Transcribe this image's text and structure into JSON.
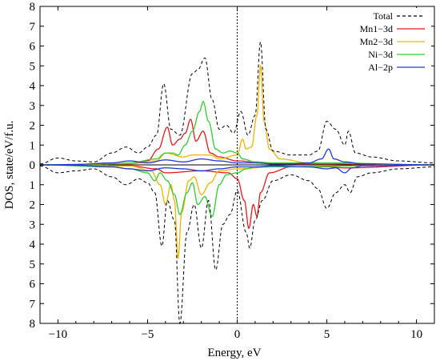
{
  "chart_data": {
    "type": "line",
    "title": "",
    "xlabel": "Energy, eV",
    "ylabel": "DOS, state/eV/f.u.",
    "xlim": [
      -11,
      11
    ],
    "ylim": [
      -8,
      8
    ],
    "xticks": [
      -10,
      -5,
      0,
      5,
      10
    ],
    "xtick_labels": [
      "−10",
      "−5",
      "0",
      "5",
      "10"
    ],
    "yticks": [
      -8,
      -7,
      -6,
      -5,
      -4,
      -3,
      -2,
      -1,
      0,
      1,
      2,
      3,
      4,
      5,
      6,
      7,
      8
    ],
    "ytick_labels": [
      "8",
      "7",
      "6",
      "5",
      "4",
      "3",
      "2",
      "1",
      "0",
      "1",
      "2",
      "3",
      "4",
      "5",
      "6",
      "7",
      "8"
    ],
    "fermi_level": 0,
    "legend_position": "top-right",
    "series": [
      {
        "name": "Total",
        "color": "#000000",
        "dashed": true,
        "up": [
          [
            -11,
            0.05
          ],
          [
            -10,
            0.35
          ],
          [
            -9,
            0.2
          ],
          [
            -8,
            0.15
          ],
          [
            -7,
            0.6
          ],
          [
            -6.2,
            0.9
          ],
          [
            -5.5,
            0.6
          ],
          [
            -5,
            0.9
          ],
          [
            -4.5,
            1.5
          ],
          [
            -4.1,
            4.1
          ],
          [
            -3.7,
            1.8
          ],
          [
            -3.2,
            1.5
          ],
          [
            -2.5,
            4.6
          ],
          [
            -2.2,
            4.8
          ],
          [
            -1.8,
            5.4
          ],
          [
            -1.4,
            3.3
          ],
          [
            -1,
            1.8
          ],
          [
            -0.6,
            2.0
          ],
          [
            -0.2,
            1.6
          ],
          [
            0.2,
            2.7
          ],
          [
            0.6,
            1.5
          ],
          [
            1.0,
            2.5
          ],
          [
            1.3,
            6.2
          ],
          [
            1.6,
            1.8
          ],
          [
            2,
            0.7
          ],
          [
            3,
            0.5
          ],
          [
            4,
            0.5
          ],
          [
            4.5,
            0.7
          ],
          [
            5,
            2.2
          ],
          [
            5.5,
            1.8
          ],
          [
            6,
            1.0
          ],
          [
            6.2,
            1.7
          ],
          [
            6.6,
            0.6
          ],
          [
            7.5,
            0.4
          ],
          [
            9,
            0.2
          ],
          [
            11,
            0.1
          ]
        ],
        "down": [
          [
            -11,
            0.05
          ],
          [
            -10,
            0.4
          ],
          [
            -9,
            0.3
          ],
          [
            -8,
            0.2
          ],
          [
            -7,
            0.6
          ],
          [
            -6.2,
            1.0
          ],
          [
            -5.5,
            0.7
          ],
          [
            -5,
            0.9
          ],
          [
            -4.6,
            1.4
          ],
          [
            -4.2,
            4.1
          ],
          [
            -3.9,
            1.8
          ],
          [
            -3.5,
            2.8
          ],
          [
            -3.2,
            8.0
          ],
          [
            -2.8,
            3.4
          ],
          [
            -2.4,
            2.0
          ],
          [
            -2.0,
            4.2
          ],
          [
            -1.6,
            1.8
          ],
          [
            -1.2,
            5.3
          ],
          [
            -0.8,
            3.0
          ],
          [
            -0.4,
            2.5
          ],
          [
            0,
            1.3
          ],
          [
            0.5,
            3.4
          ],
          [
            0.7,
            4.2
          ],
          [
            1.0,
            2.8
          ],
          [
            1.4,
            1.8
          ],
          [
            2,
            0.8
          ],
          [
            3,
            0.5
          ],
          [
            4,
            0.8
          ],
          [
            4.5,
            1.2
          ],
          [
            5,
            2.2
          ],
          [
            5.5,
            1.4
          ],
          [
            6,
            1.0
          ],
          [
            6.3,
            1.4
          ],
          [
            6.7,
            0.6
          ],
          [
            7.5,
            0.4
          ],
          [
            9,
            0.2
          ],
          [
            11,
            0.1
          ]
        ]
      },
      {
        "name": "Mn1−3d",
        "color": "#e31a1c",
        "dashed": false,
        "up": [
          [
            -11,
            0
          ],
          [
            -6,
            0.05
          ],
          [
            -5,
            0.2
          ],
          [
            -4.4,
            0.8
          ],
          [
            -3.9,
            1.9
          ],
          [
            -3.6,
            1.0
          ],
          [
            -3.2,
            1.3
          ],
          [
            -2.9,
            1.6
          ],
          [
            -2.6,
            2.3
          ],
          [
            -2.3,
            1.2
          ],
          [
            -1.9,
            1.7
          ],
          [
            -1.5,
            0.6
          ],
          [
            -1,
            0.4
          ],
          [
            0,
            0.2
          ],
          [
            1,
            0.15
          ],
          [
            2,
            0.05
          ],
          [
            5,
            0.05
          ],
          [
            11,
            0
          ]
        ],
        "down": [
          [
            -11,
            0
          ],
          [
            -6,
            0.05
          ],
          [
            -4.5,
            0.2
          ],
          [
            -4,
            0.4
          ],
          [
            -2,
            0.3
          ],
          [
            -0.5,
            0.4
          ],
          [
            0,
            0.7
          ],
          [
            0.4,
            1.8
          ],
          [
            0.65,
            3.2
          ],
          [
            0.9,
            2.0
          ],
          [
            1.1,
            2.6
          ],
          [
            1.3,
            1.4
          ],
          [
            1.8,
            0.4
          ],
          [
            3,
            0.1
          ],
          [
            5,
            0.1
          ],
          [
            6,
            0.15
          ],
          [
            11,
            0
          ]
        ]
      },
      {
        "name": "Mn2−3d",
        "color": "#f0b400",
        "dashed": false,
        "up": [
          [
            -11,
            0
          ],
          [
            -6,
            0.05
          ],
          [
            -4.5,
            0.2
          ],
          [
            -4,
            0.6
          ],
          [
            -3,
            0.4
          ],
          [
            -2.5,
            0.5
          ],
          [
            -1.5,
            0.5
          ],
          [
            -1,
            0.3
          ],
          [
            0,
            0.5
          ],
          [
            0.3,
            1.3
          ],
          [
            0.5,
            0.8
          ],
          [
            0.8,
            0.9
          ],
          [
            1.1,
            2.5
          ],
          [
            1.3,
            5.0
          ],
          [
            1.5,
            2.2
          ],
          [
            1.8,
            0.8
          ],
          [
            2.4,
            0.3
          ],
          [
            4,
            0.1
          ],
          [
            11,
            0
          ]
        ],
        "down": [
          [
            -11,
            0
          ],
          [
            -6,
            0.05
          ],
          [
            -4.8,
            0.3
          ],
          [
            -4.3,
            1.0
          ],
          [
            -4.0,
            2.0
          ],
          [
            -3.7,
            1.0
          ],
          [
            -3.5,
            1.8
          ],
          [
            -3.3,
            4.7
          ],
          [
            -3.1,
            2.4
          ],
          [
            -2.7,
            0.8
          ],
          [
            -2.4,
            0.6
          ],
          [
            -2.0,
            1.5
          ],
          [
            -1.5,
            0.9
          ],
          [
            -1,
            0.3
          ],
          [
            0,
            0.2
          ],
          [
            2,
            0.1
          ],
          [
            11,
            0
          ]
        ]
      },
      {
        "name": "Ni−3d",
        "color": "#33cc33",
        "dashed": false,
        "up": [
          [
            -11,
            0
          ],
          [
            -7,
            0.05
          ],
          [
            -6,
            0.1
          ],
          [
            -4.5,
            0.3
          ],
          [
            -4,
            0.6
          ],
          [
            -3.6,
            0.6
          ],
          [
            -3.3,
            0.5
          ],
          [
            -2.9,
            1.0
          ],
          [
            -2.5,
            1.7
          ],
          [
            -2.1,
            2.7
          ],
          [
            -1.9,
            3.2
          ],
          [
            -1.6,
            2.2
          ],
          [
            -1.2,
            0.8
          ],
          [
            -0.8,
            0.6
          ],
          [
            -0.4,
            0.7
          ],
          [
            0,
            0.6
          ],
          [
            0.3,
            0.3
          ],
          [
            1,
            0.15
          ],
          [
            2,
            0.1
          ],
          [
            5,
            0.1
          ],
          [
            11,
            0
          ]
        ],
        "down": [
          [
            -11,
            0
          ],
          [
            -7,
            0.1
          ],
          [
            -6,
            0.2
          ],
          [
            -5,
            0.4
          ],
          [
            -4.6,
            0.8
          ],
          [
            -4.3,
            0.4
          ],
          [
            -3.9,
            0.8
          ],
          [
            -3.5,
            1.5
          ],
          [
            -3.2,
            2.5
          ],
          [
            -2.8,
            1.4
          ],
          [
            -2.5,
            0.9
          ],
          [
            -2.2,
            2.0
          ],
          [
            -1.8,
            1.6
          ],
          [
            -1.4,
            2.6
          ],
          [
            -1.0,
            1.0
          ],
          [
            -0.6,
            0.5
          ],
          [
            0,
            0.4
          ],
          [
            0.5,
            0.2
          ],
          [
            1,
            0.1
          ],
          [
            11,
            0
          ]
        ]
      },
      {
        "name": "Al−2p",
        "color": "#1f3ad6",
        "dashed": false,
        "up": [
          [
            -11,
            0
          ],
          [
            -9,
            0.02
          ],
          [
            -7,
            0.1
          ],
          [
            -6,
            0.2
          ],
          [
            -5,
            0.1
          ],
          [
            -4,
            0.25
          ],
          [
            -3,
            0.15
          ],
          [
            -2,
            0.3
          ],
          [
            -1,
            0.2
          ],
          [
            0,
            0.1
          ],
          [
            1,
            0.1
          ],
          [
            2,
            0.05
          ],
          [
            3,
            0.05
          ],
          [
            4,
            0.1
          ],
          [
            4.7,
            0.3
          ],
          [
            5.1,
            0.8
          ],
          [
            5.4,
            0.3
          ],
          [
            6,
            0.15
          ],
          [
            7,
            0.05
          ],
          [
            11,
            0
          ]
        ],
        "down": [
          [
            -11,
            0
          ],
          [
            -9,
            0.02
          ],
          [
            -7,
            0.1
          ],
          [
            -6,
            0.2
          ],
          [
            -5,
            0.3
          ],
          [
            -4,
            0.15
          ],
          [
            -3,
            0.2
          ],
          [
            -2,
            0.3
          ],
          [
            -1,
            0.2
          ],
          [
            0,
            0.1
          ],
          [
            1,
            0.1
          ],
          [
            2,
            0.05
          ],
          [
            4,
            0.1
          ],
          [
            5,
            0.2
          ],
          [
            5.5,
            0.15
          ],
          [
            6,
            0.4
          ],
          [
            6.4,
            0.15
          ],
          [
            7,
            0.05
          ],
          [
            11,
            0
          ]
        ]
      }
    ]
  }
}
